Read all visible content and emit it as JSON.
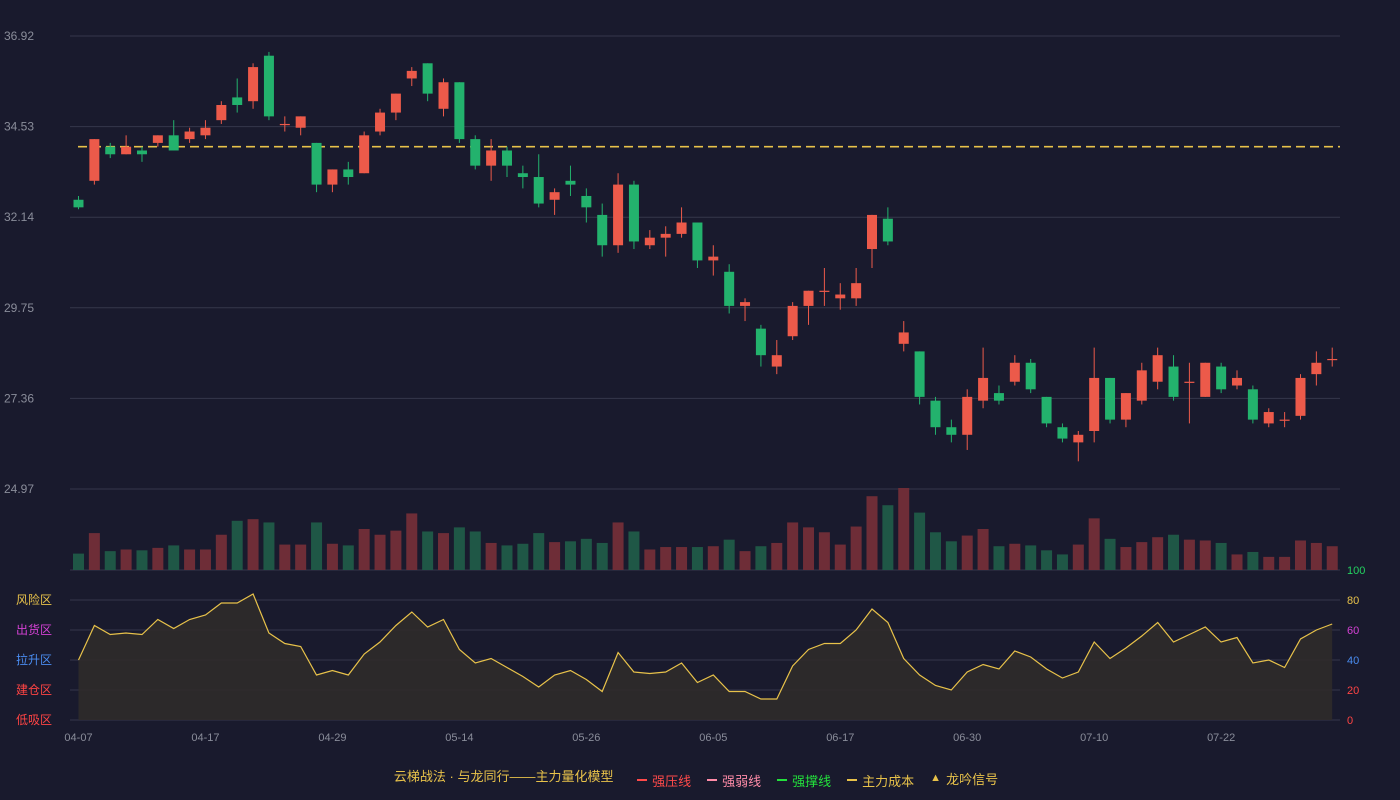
{
  "chart_data": {
    "type": "candlestick",
    "price_axis": {
      "ylim": [
        24.97,
        36.92
      ],
      "ticks": [
        "36.92",
        "34.53",
        "32.14",
        "29.75",
        "27.36",
        "24.97"
      ]
    },
    "x_ticks": [
      {
        "index": 0,
        "label": "04-07"
      },
      {
        "index": 8,
        "label": "04-17"
      },
      {
        "index": 16,
        "label": "04-29"
      },
      {
        "index": 24,
        "label": "05-14"
      },
      {
        "index": 32,
        "label": "05-26"
      },
      {
        "index": 40,
        "label": "06-05"
      },
      {
        "index": 48,
        "label": "06-17"
      },
      {
        "index": 56,
        "label": "06-30"
      },
      {
        "index": 64,
        "label": "07-10"
      },
      {
        "index": 72,
        "label": "07-22"
      }
    ],
    "main_cost_line": 34.0,
    "candles": [
      [
        32.6,
        32.4,
        32.7,
        32.35
      ],
      [
        33.1,
        34.2,
        34.2,
        33.0
      ],
      [
        34.0,
        33.8,
        34.1,
        33.7
      ],
      [
        33.8,
        34.0,
        34.3,
        33.8
      ],
      [
        33.9,
        33.8,
        34.0,
        33.6
      ],
      [
        34.1,
        34.3,
        34.3,
        34.0
      ],
      [
        34.3,
        33.9,
        34.7,
        33.9
      ],
      [
        34.2,
        34.4,
        34.5,
        34.1
      ],
      [
        34.3,
        34.5,
        34.7,
        34.2
      ],
      [
        34.7,
        35.1,
        35.2,
        34.6
      ],
      [
        35.3,
        35.1,
        35.8,
        34.9
      ],
      [
        35.2,
        36.1,
        36.2,
        35.0
      ],
      [
        36.4,
        34.8,
        36.5,
        34.7
      ],
      [
        34.6,
        34.6,
        34.8,
        34.4
      ],
      [
        34.5,
        34.8,
        34.8,
        34.3
      ],
      [
        34.1,
        33.0,
        34.1,
        32.8
      ],
      [
        33.0,
        33.4,
        33.4,
        32.8
      ],
      [
        33.4,
        33.2,
        33.6,
        33.0
      ],
      [
        33.3,
        34.3,
        34.4,
        33.3
      ],
      [
        34.4,
        34.9,
        35.0,
        34.3
      ],
      [
        34.9,
        35.4,
        35.4,
        34.7
      ],
      [
        35.8,
        36.0,
        36.1,
        35.6
      ],
      [
        36.2,
        35.4,
        36.2,
        35.2
      ],
      [
        35.0,
        35.7,
        35.8,
        34.8
      ],
      [
        35.7,
        34.2,
        35.7,
        34.1
      ],
      [
        34.2,
        33.5,
        34.3,
        33.4
      ],
      [
        33.5,
        33.9,
        34.2,
        33.1
      ],
      [
        33.9,
        33.5,
        34.0,
        33.2
      ],
      [
        33.3,
        33.2,
        33.5,
        32.9
      ],
      [
        33.2,
        32.5,
        33.8,
        32.4
      ],
      [
        32.6,
        32.8,
        32.9,
        32.2
      ],
      [
        33.1,
        33.0,
        33.5,
        32.7
      ],
      [
        32.7,
        32.4,
        32.9,
        32.0
      ],
      [
        32.2,
        31.4,
        32.5,
        31.1
      ],
      [
        31.4,
        33.0,
        33.3,
        31.2
      ],
      [
        33.0,
        31.5,
        33.1,
        31.3
      ],
      [
        31.4,
        31.6,
        31.8,
        31.3
      ],
      [
        31.6,
        31.7,
        31.9,
        31.1
      ],
      [
        31.7,
        32.0,
        32.4,
        31.6
      ],
      [
        32.0,
        31.0,
        32.0,
        30.8
      ],
      [
        31.0,
        31.1,
        31.4,
        30.6
      ],
      [
        30.7,
        29.8,
        30.9,
        29.6
      ],
      [
        29.8,
        29.9,
        30.0,
        29.4
      ],
      [
        29.2,
        28.5,
        29.3,
        28.2
      ],
      [
        28.2,
        28.5,
        28.9,
        28.0
      ],
      [
        29.0,
        29.8,
        29.9,
        28.9
      ],
      [
        29.8,
        30.2,
        30.2,
        29.3
      ],
      [
        30.2,
        30.2,
        30.8,
        29.8
      ],
      [
        30.0,
        30.1,
        30.4,
        29.7
      ],
      [
        30.0,
        30.4,
        30.8,
        29.8
      ],
      [
        31.3,
        32.2,
        32.2,
        30.8
      ],
      [
        32.1,
        31.5,
        32.4,
        31.4
      ],
      [
        28.8,
        29.1,
        29.4,
        28.6
      ],
      [
        28.6,
        27.4,
        28.6,
        27.2
      ],
      [
        27.3,
        26.6,
        27.4,
        26.4
      ],
      [
        26.6,
        26.4,
        26.8,
        26.2
      ],
      [
        26.4,
        27.4,
        27.6,
        26.0
      ],
      [
        27.3,
        27.9,
        28.7,
        27.1
      ],
      [
        27.5,
        27.3,
        27.7,
        27.2
      ],
      [
        27.8,
        28.3,
        28.5,
        27.7
      ],
      [
        28.3,
        27.6,
        28.4,
        27.5
      ],
      [
        27.4,
        26.7,
        27.4,
        26.6
      ],
      [
        26.6,
        26.3,
        26.7,
        26.2
      ],
      [
        26.2,
        26.4,
        26.5,
        25.7
      ],
      [
        26.5,
        27.9,
        28.7,
        26.2
      ],
      [
        27.9,
        26.8,
        27.9,
        26.7
      ],
      [
        26.8,
        27.5,
        27.5,
        26.6
      ],
      [
        27.3,
        28.1,
        28.3,
        27.2
      ],
      [
        27.8,
        28.5,
        28.7,
        27.6
      ],
      [
        28.2,
        27.4,
        28.5,
        27.3
      ],
      [
        27.8,
        27.8,
        28.3,
        26.7
      ],
      [
        27.4,
        28.3,
        28.3,
        27.4
      ],
      [
        28.2,
        27.6,
        28.3,
        27.5
      ],
      [
        27.7,
        27.9,
        28.1,
        27.6
      ],
      [
        27.6,
        26.8,
        27.7,
        26.7
      ],
      [
        26.7,
        27.0,
        27.1,
        26.6
      ],
      [
        26.8,
        26.8,
        27.0,
        26.6
      ],
      [
        26.9,
        27.9,
        28.0,
        26.8
      ],
      [
        28.0,
        28.3,
        28.6,
        27.7
      ],
      [
        28.4,
        28.4,
        28.7,
        28.2
      ]
    ],
    "volume": [
      0.2,
      0.45,
      0.23,
      0.25,
      0.24,
      0.27,
      0.3,
      0.25,
      0.25,
      0.43,
      0.6,
      0.62,
      0.58,
      0.31,
      0.31,
      0.58,
      0.32,
      0.3,
      0.5,
      0.43,
      0.48,
      0.69,
      0.47,
      0.45,
      0.52,
      0.47,
      0.33,
      0.3,
      0.32,
      0.45,
      0.34,
      0.35,
      0.38,
      0.33,
      0.58,
      0.47,
      0.25,
      0.28,
      0.28,
      0.28,
      0.29,
      0.37,
      0.23,
      0.29,
      0.33,
      0.58,
      0.52,
      0.46,
      0.31,
      0.53,
      0.9,
      0.79,
      1.0,
      0.7,
      0.46,
      0.35,
      0.42,
      0.5,
      0.29,
      0.32,
      0.3,
      0.24,
      0.19,
      0.31,
      0.63,
      0.38,
      0.28,
      0.34,
      0.4,
      0.43,
      0.37,
      0.36,
      0.33,
      0.19,
      0.22,
      0.16,
      0.16,
      0.36,
      0.33,
      0.29
    ],
    "oscillator": {
      "ylim": [
        0,
        100
      ],
      "ticks": [
        "100",
        "80",
        "60",
        "40",
        "20",
        "0"
      ],
      "tick_colors": [
        "#23d160",
        "#e8c24a",
        "#d441d4",
        "#4a8cf0",
        "#ff4444",
        "#ff4444"
      ],
      "values": [
        40,
        63,
        57,
        58,
        57,
        67,
        61,
        67,
        70,
        78,
        78,
        84,
        58,
        51,
        49,
        30,
        33,
        30,
        44,
        52,
        63,
        72,
        62,
        67,
        47,
        38,
        41,
        35,
        29,
        22,
        30,
        33,
        27,
        19,
        45,
        32,
        31,
        32,
        38,
        25,
        30,
        19,
        19,
        14,
        14,
        36,
        47,
        51,
        51,
        60,
        74,
        65,
        41,
        30,
        23,
        20,
        32,
        37,
        34,
        46,
        42,
        34,
        28,
        32,
        52,
        41,
        48,
        56,
        65,
        52,
        57,
        62,
        52,
        55,
        38,
        40,
        35,
        54,
        60,
        64
      ],
      "zones": [
        {
          "label": "风险区",
          "color": "#e8c24a"
        },
        {
          "label": "出货区",
          "color": "#d441d4"
        },
        {
          "label": "拉升区",
          "color": "#4a8cf0"
        },
        {
          "label": "建仓区",
          "color": "#ff4444"
        },
        {
          "label": "低吸区",
          "color": "#ff4444"
        }
      ]
    }
  },
  "legend": {
    "title": "云梯战法 · 与龙同行——主力量化模型",
    "items": [
      {
        "label": "强压线",
        "color": "#ff4a4a",
        "style": "solid"
      },
      {
        "label": "强弱线",
        "color": "#ff8ca8",
        "style": "dashed"
      },
      {
        "label": "强撑线",
        "color": "#23e03c",
        "style": "solid"
      },
      {
        "label": "主力成本",
        "color": "#e8c24a",
        "style": "dashed"
      },
      {
        "label": "龙吟信号",
        "color": "#e8c24a",
        "style": "triangle"
      }
    ]
  },
  "colors": {
    "up": "#ec5a4a",
    "down": "#23b26d",
    "up_volume": "#6e2d37",
    "down_volume": "#1f5746",
    "grid": "#35374b",
    "osc_line": "#e8c24a",
    "osc_fill": "#2f2b2a",
    "cost_line": "#e8c24a"
  }
}
